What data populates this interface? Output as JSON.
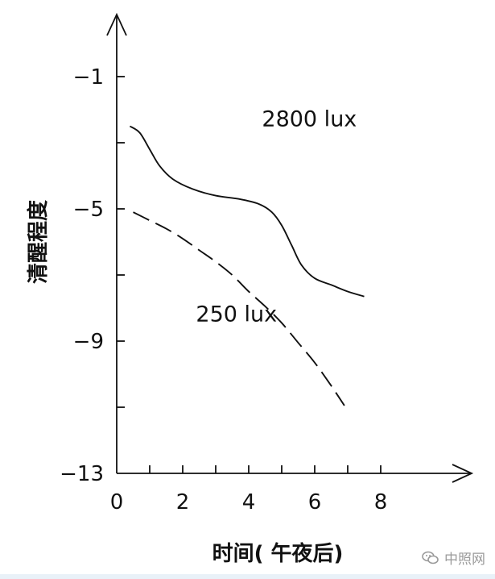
{
  "chart_data": {
    "type": "line",
    "xlabel": "时间( 午夜后)",
    "ylabel": "清醒程度",
    "xlim": [
      0,
      10
    ],
    "ylim": [
      -13,
      2
    ],
    "x_ticks": [
      0,
      2,
      4,
      6,
      8
    ],
    "x_minor_ticks": [
      1,
      3,
      5,
      7
    ],
    "y_ticks": [
      -1,
      -5,
      -9,
      -13
    ],
    "y_minor_ticks": [
      -3,
      -7,
      -11
    ],
    "grid": false,
    "series": [
      {
        "name": "2800 lux",
        "style": "solid",
        "points": [
          [
            0.4,
            -2.5
          ],
          [
            0.7,
            -2.7
          ],
          [
            1.0,
            -3.2
          ],
          [
            1.3,
            -3.7
          ],
          [
            1.7,
            -4.1
          ],
          [
            2.3,
            -4.4
          ],
          [
            3.0,
            -4.6
          ],
          [
            3.7,
            -4.7
          ],
          [
            4.3,
            -4.85
          ],
          [
            4.7,
            -5.1
          ],
          [
            5.0,
            -5.5
          ],
          [
            5.3,
            -6.1
          ],
          [
            5.6,
            -6.7
          ],
          [
            6.0,
            -7.1
          ],
          [
            6.5,
            -7.3
          ],
          [
            7.0,
            -7.5
          ],
          [
            7.5,
            -7.65
          ]
        ]
      },
      {
        "name": "250 lux",
        "style": "dashed",
        "points": [
          [
            0.5,
            -5.1
          ],
          [
            1.0,
            -5.35
          ],
          [
            1.5,
            -5.6
          ],
          [
            2.0,
            -5.9
          ],
          [
            2.5,
            -6.25
          ],
          [
            3.0,
            -6.6
          ],
          [
            3.5,
            -7.0
          ],
          [
            4.0,
            -7.5
          ],
          [
            4.5,
            -7.95
          ],
          [
            5.0,
            -8.45
          ],
          [
            5.5,
            -9.05
          ],
          [
            6.0,
            -9.65
          ],
          [
            6.5,
            -10.35
          ],
          [
            6.9,
            -10.95
          ]
        ]
      }
    ]
  },
  "watermark": {
    "text": "中照网",
    "icon": "wechat-icon"
  }
}
